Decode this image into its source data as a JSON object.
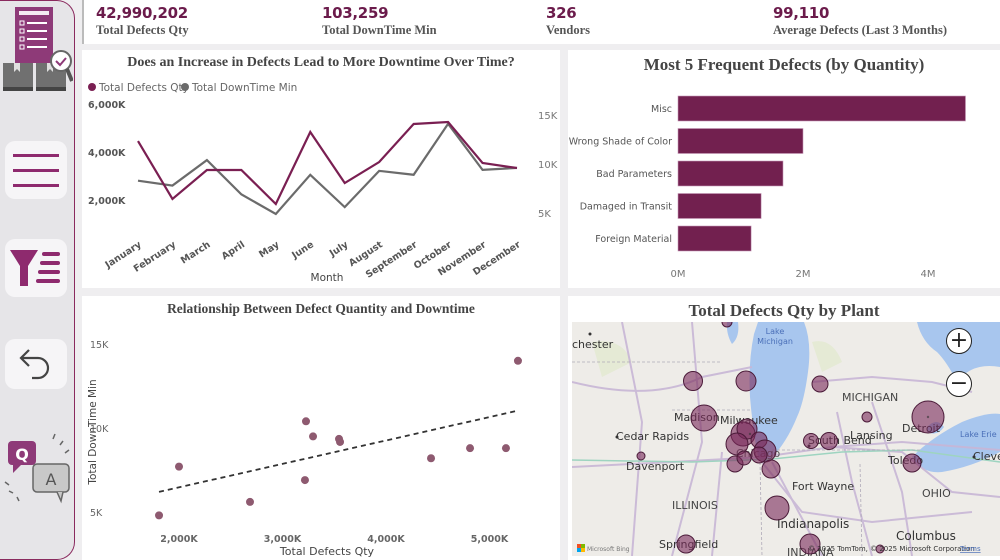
{
  "sidebar": {
    "logo_icon": "defect-inspection-logo-icon",
    "items": [
      {
        "name": "menu",
        "icon": "hamburger-menu-icon"
      },
      {
        "name": "filter",
        "icon": "filter-list-icon"
      },
      {
        "name": "back",
        "icon": "undo-back-icon"
      },
      {
        "name": "qa",
        "icon": "question-answer-icon",
        "q_letter": "Q",
        "a_letter": "A"
      }
    ]
  },
  "kpis": [
    {
      "value": "42,990,202",
      "label": "Total Defects Qty"
    },
    {
      "value": "103,259",
      "label": "Total DownTime Min"
    },
    {
      "value": "326",
      "label": "Vendors"
    },
    {
      "value": "99,110",
      "label": "Average Defects (Last 3 Months)"
    }
  ],
  "colors": {
    "accent": "#7a1f52",
    "bar": "#72204f",
    "secondary_line": "#6b6b6b",
    "scatter_point": "#8e5a70",
    "bubble": "#7a2a5a"
  },
  "chart_data": [
    {
      "type": "line",
      "title": "Does an Increase in Defects Lead to More Downtime Over Time?",
      "xlabel": "Month",
      "ylabel_left": "",
      "ylabel_right": "",
      "categories": [
        "January",
        "February",
        "March",
        "April",
        "May",
        "June",
        "July",
        "August",
        "September",
        "October",
        "November",
        "December"
      ],
      "legend_position": "top-left",
      "y_left": {
        "ticks": [
          2000,
          4000,
          6000
        ],
        "tick_labels": [
          "2,000K",
          "4,000K",
          "6,000K"
        ],
        "range": [
          0,
          6200
        ],
        "unit": "K"
      },
      "y_right": {
        "ticks": [
          5,
          10,
          15
        ],
        "tick_labels": [
          "5K",
          "10K",
          "15K"
        ],
        "range": [
          0,
          17
        ],
        "unit": "K"
      },
      "series": [
        {
          "name": "Total Defects Qty",
          "axis": "left",
          "values": [
            4458,
            2042,
            3250,
            3250,
            1833,
            4833,
            2708,
            3583,
            5167,
            5250,
            3542,
            3333
          ]
        },
        {
          "name": "Total DownTime Min",
          "axis": "right",
          "values": [
            8.3,
            7.8,
            10.4,
            6.9,
            4.9,
            8.9,
            5.6,
            9.3,
            8.9,
            14.1,
            9.4,
            9.6
          ]
        }
      ]
    },
    {
      "type": "bar",
      "orientation": "horizontal",
      "title": "Most 5 Frequent Defects (by Quantity)",
      "categories": [
        "Misc",
        "Wrong Shade of Color",
        "Bad Parameters",
        "Damaged in Transit",
        "Foreign Material"
      ],
      "values": [
        4.6,
        2.0,
        1.68,
        1.33,
        1.17
      ],
      "unit": "M",
      "x_ticks": [
        0,
        2,
        4
      ],
      "x_tick_labels": [
        "0M",
        "2M",
        "4M"
      ],
      "xlim": [
        0,
        4.8
      ]
    },
    {
      "type": "scatter",
      "title": "Relationship Between Defect Quantity and Downtime",
      "xlabel": "Total Defects Qty",
      "ylabel": "Total DownTime Min",
      "x_ticks": [
        2000,
        3000,
        4000,
        5000
      ],
      "x_tick_labels": [
        "2,000K",
        "3,000K",
        "4,000K",
        "5,000K"
      ],
      "y_ticks": [
        5,
        10,
        15
      ],
      "y_tick_labels": [
        "5K",
        "10K",
        "15K"
      ],
      "points": [
        {
          "x": 1807,
          "y": 4.8
        },
        {
          "x": 2000,
          "y": 7.7
        },
        {
          "x": 2686,
          "y": 5.6
        },
        {
          "x": 3227,
          "y": 10.4
        },
        {
          "x": 3295,
          "y": 9.5
        },
        {
          "x": 3217,
          "y": 6.9
        },
        {
          "x": 3546,
          "y": 9.35
        },
        {
          "x": 3556,
          "y": 9.17
        },
        {
          "x": 4435,
          "y": 8.2
        },
        {
          "x": 4812,
          "y": 8.8
        },
        {
          "x": 5159,
          "y": 8.8
        },
        {
          "x": 5275,
          "y": 14.0
        }
      ],
      "trendline": {
        "from": {
          "x": 1807,
          "y": 6.2
        },
        "to": {
          "x": 5250,
          "y": 11.0
        },
        "style": "dashed"
      }
    }
  ],
  "map": {
    "title": "Total Defects Qty by Plant",
    "labels": {
      "lake_michigan": "Lake\nMichigan",
      "lake_erie": "Lake Erie",
      "michigan": "MICHIGAN",
      "illinois": "ILLINOIS",
      "ohio": "OHIO",
      "indiana": "INDIANA",
      "cities": [
        "chester",
        "Madison",
        "Milwaukee",
        "Lansing",
        "Detroit",
        "Cedar Rapids",
        "South Bend",
        "Toledo",
        "Davenport",
        "Fort Wayne",
        "Cleve",
        "Indianapolis",
        "Columbus",
        "Springfield",
        "Chicago"
      ]
    },
    "zoom_in": "+",
    "zoom_out": "−",
    "attribution": "© 2025 TomTom, © 2025 Microsoft Corporation",
    "terms": "Terms",
    "provider": "Microsoft Bing"
  }
}
